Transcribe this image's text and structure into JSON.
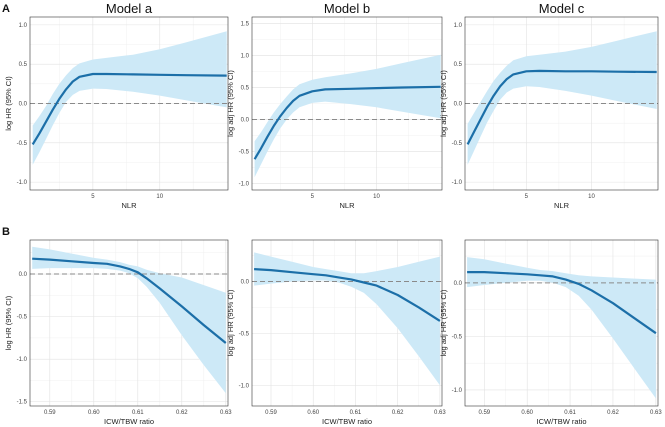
{
  "figure": {
    "panel_labels": [
      "A",
      "B"
    ],
    "column_titles": [
      "Model a",
      "Model b",
      "Model c"
    ]
  },
  "chart_data": [
    {
      "id": "A-a",
      "type": "area",
      "title": "Model a",
      "xlabel": "NLR",
      "ylabel": "log HR (95% CI)",
      "xlim": [
        0.3,
        15.1
      ],
      "ylim": [
        -1.1,
        1.1
      ],
      "xticks": [
        5,
        10
      ],
      "xticklabels": [
        "5",
        "10"
      ],
      "yticks": [
        -1.0,
        -0.5,
        0.0,
        0.5,
        1.0
      ],
      "yticklabels": [
        "-1.0",
        "-0.5",
        "0.0",
        "0.5",
        "1.0"
      ],
      "reference_line": 0,
      "grid": true,
      "x": [
        0.5,
        1.0,
        1.5,
        2.0,
        2.5,
        3.0,
        3.5,
        4.0,
        5.0,
        6.0,
        8.0,
        10.0,
        12.0,
        15.0
      ],
      "y": [
        -0.52,
        -0.38,
        -0.23,
        -0.08,
        0.06,
        0.18,
        0.28,
        0.34,
        0.375,
        0.375,
        0.37,
        0.365,
        0.36,
        0.355
      ],
      "lower": [
        -0.78,
        -0.62,
        -0.45,
        -0.28,
        -0.12,
        0.02,
        0.11,
        0.16,
        0.19,
        0.185,
        0.15,
        0.1,
        0.04,
        -0.05
      ],
      "upper": [
        -0.28,
        -0.16,
        -0.03,
        0.12,
        0.25,
        0.36,
        0.45,
        0.51,
        0.56,
        0.58,
        0.62,
        0.69,
        0.78,
        0.92
      ]
    },
    {
      "id": "A-b",
      "type": "area",
      "title": "Model b",
      "xlabel": "NLR",
      "ylabel": "log adj HR (95% CI)",
      "xlim": [
        0.3,
        15.1
      ],
      "ylim": [
        -1.1,
        1.6
      ],
      "xticks": [
        5,
        10
      ],
      "xticklabels": [
        "5",
        "10"
      ],
      "yticks": [
        -1.0,
        -0.5,
        0.0,
        0.5,
        1.0,
        1.5
      ],
      "yticklabels": [
        "-1.0",
        "-0.5",
        "0.0",
        "0.5",
        "1.0",
        "1.5"
      ],
      "reference_line": 0,
      "grid": true,
      "x": [
        0.5,
        1.0,
        1.5,
        2.0,
        2.5,
        3.0,
        3.5,
        4.0,
        5.0,
        6.0,
        8.0,
        10.0,
        12.0,
        15.0
      ],
      "y": [
        -0.62,
        -0.45,
        -0.27,
        -0.1,
        0.05,
        0.18,
        0.29,
        0.37,
        0.44,
        0.47,
        0.48,
        0.49,
        0.5,
        0.51
      ],
      "lower": [
        -0.9,
        -0.7,
        -0.5,
        -0.31,
        -0.14,
        0.0,
        0.11,
        0.19,
        0.26,
        0.28,
        0.24,
        0.19,
        0.12,
        0.02
      ],
      "upper": [
        -0.34,
        -0.2,
        -0.04,
        0.11,
        0.24,
        0.36,
        0.47,
        0.55,
        0.62,
        0.66,
        0.72,
        0.79,
        0.88,
        1.01
      ]
    },
    {
      "id": "A-c",
      "type": "area",
      "title": "Model c",
      "xlabel": "NLR",
      "ylabel": "log adj HR (95% CI)",
      "xlim": [
        0.3,
        15.1
      ],
      "ylim": [
        -1.1,
        1.1
      ],
      "xticks": [
        5,
        10
      ],
      "xticklabels": [
        "5",
        "10"
      ],
      "yticks": [
        -1.0,
        -0.5,
        0.0,
        0.5,
        1.0
      ],
      "yticklabels": [
        "-1.0",
        "-0.5",
        "0.0",
        "0.5",
        "1.0"
      ],
      "reference_line": 0,
      "grid": true,
      "x": [
        0.5,
        1.0,
        1.5,
        2.0,
        2.5,
        3.0,
        3.5,
        4.0,
        5.0,
        6.0,
        8.0,
        10.0,
        12.0,
        15.0
      ],
      "y": [
        -0.52,
        -0.36,
        -0.2,
        -0.04,
        0.1,
        0.22,
        0.31,
        0.37,
        0.41,
        0.415,
        0.41,
        0.41,
        0.405,
        0.4
      ],
      "lower": [
        -0.78,
        -0.6,
        -0.42,
        -0.24,
        -0.09,
        0.05,
        0.14,
        0.19,
        0.22,
        0.21,
        0.16,
        0.1,
        0.03,
        -0.07
      ],
      "upper": [
        -0.26,
        -0.12,
        0.02,
        0.16,
        0.29,
        0.39,
        0.48,
        0.55,
        0.6,
        0.62,
        0.66,
        0.72,
        0.8,
        0.92
      ]
    },
    {
      "id": "B-a",
      "type": "area",
      "xlabel": "ICW/TBW ratio",
      "ylabel": "log HR (95% CI)",
      "xlim": [
        0.5855,
        0.6305
      ],
      "ylim": [
        -1.55,
        0.4
      ],
      "xticks": [
        0.59,
        0.6,
        0.61,
        0.62,
        0.63
      ],
      "xticklabels": [
        "0.59",
        "0.60",
        "0.61",
        "0.62",
        "0.63"
      ],
      "yticks": [
        -1.5,
        -1.0,
        -0.5,
        0.0
      ],
      "yticklabels": [
        "-1.5",
        "-1.0",
        "-0.5",
        "0.0"
      ],
      "reference_line": 0,
      "grid": true,
      "x": [
        0.586,
        0.59,
        0.595,
        0.6,
        0.603,
        0.606,
        0.608,
        0.61,
        0.612,
        0.615,
        0.62,
        0.625,
        0.63
      ],
      "y": [
        0.18,
        0.17,
        0.15,
        0.13,
        0.12,
        0.09,
        0.06,
        0.02,
        -0.05,
        -0.17,
        -0.38,
        -0.6,
        -0.81
      ],
      "lower": [
        0.06,
        0.07,
        0.07,
        0.07,
        0.06,
        0.04,
        0.01,
        -0.05,
        -0.15,
        -0.34,
        -0.72,
        -1.07,
        -1.4
      ],
      "upper": [
        0.32,
        0.29,
        0.24,
        0.19,
        0.17,
        0.14,
        0.11,
        0.09,
        0.05,
        0.01,
        -0.04,
        -0.13,
        -0.22
      ]
    },
    {
      "id": "B-b",
      "type": "area",
      "xlabel": "ICW/TBW ratio",
      "ylabel": "log adj HR (95% CI)",
      "xlim": [
        0.5855,
        0.6305
      ],
      "ylim": [
        -1.2,
        0.4
      ],
      "xticks": [
        0.59,
        0.6,
        0.61,
        0.62,
        0.63
      ],
      "xticklabels": [
        "0.59",
        "0.60",
        "0.61",
        "0.62",
        "0.63"
      ],
      "yticks": [
        -1.0,
        -0.5,
        0.0
      ],
      "yticklabels": [
        "-1.0",
        "-0.5",
        "0.0"
      ],
      "reference_line": 0,
      "grid": true,
      "x": [
        0.586,
        0.59,
        0.595,
        0.6,
        0.603,
        0.606,
        0.609,
        0.612,
        0.615,
        0.62,
        0.625,
        0.63
      ],
      "y": [
        0.12,
        0.11,
        0.09,
        0.07,
        0.06,
        0.04,
        0.02,
        -0.01,
        -0.04,
        -0.13,
        -0.25,
        -0.38
      ],
      "lower": [
        -0.04,
        -0.02,
        0.0,
        0.01,
        0.01,
        -0.01,
        -0.05,
        -0.11,
        -0.22,
        -0.45,
        -0.72,
        -1.0
      ],
      "upper": [
        0.28,
        0.24,
        0.19,
        0.14,
        0.12,
        0.1,
        0.08,
        0.08,
        0.1,
        0.14,
        0.19,
        0.24
      ]
    },
    {
      "id": "B-c",
      "type": "area",
      "xlabel": "ICW/TBW ratio",
      "ylabel": "log adj HR (95% CI)",
      "xlim": [
        0.5855,
        0.6305
      ],
      "ylim": [
        -1.15,
        0.4
      ],
      "xticks": [
        0.59,
        0.6,
        0.61,
        0.62,
        0.63
      ],
      "xticklabels": [
        "0.59",
        "0.60",
        "0.61",
        "0.62",
        "0.63"
      ],
      "yticks": [
        -1.0,
        -0.5,
        0.0
      ],
      "yticklabels": [
        "-1.0",
        "-0.5",
        "0.0"
      ],
      "reference_line": 0,
      "grid": true,
      "x": [
        0.586,
        0.59,
        0.595,
        0.6,
        0.603,
        0.606,
        0.609,
        0.612,
        0.615,
        0.62,
        0.625,
        0.63
      ],
      "y": [
        0.1,
        0.1,
        0.09,
        0.08,
        0.07,
        0.06,
        0.03,
        -0.01,
        -0.07,
        -0.19,
        -0.33,
        -0.47
      ],
      "lower": [
        -0.04,
        -0.02,
        0.0,
        0.02,
        0.02,
        0.0,
        -0.04,
        -0.12,
        -0.25,
        -0.52,
        -0.8,
        -1.08
      ],
      "upper": [
        0.24,
        0.22,
        0.18,
        0.14,
        0.12,
        0.11,
        0.09,
        0.07,
        0.06,
        0.05,
        0.04,
        0.03
      ]
    }
  ]
}
